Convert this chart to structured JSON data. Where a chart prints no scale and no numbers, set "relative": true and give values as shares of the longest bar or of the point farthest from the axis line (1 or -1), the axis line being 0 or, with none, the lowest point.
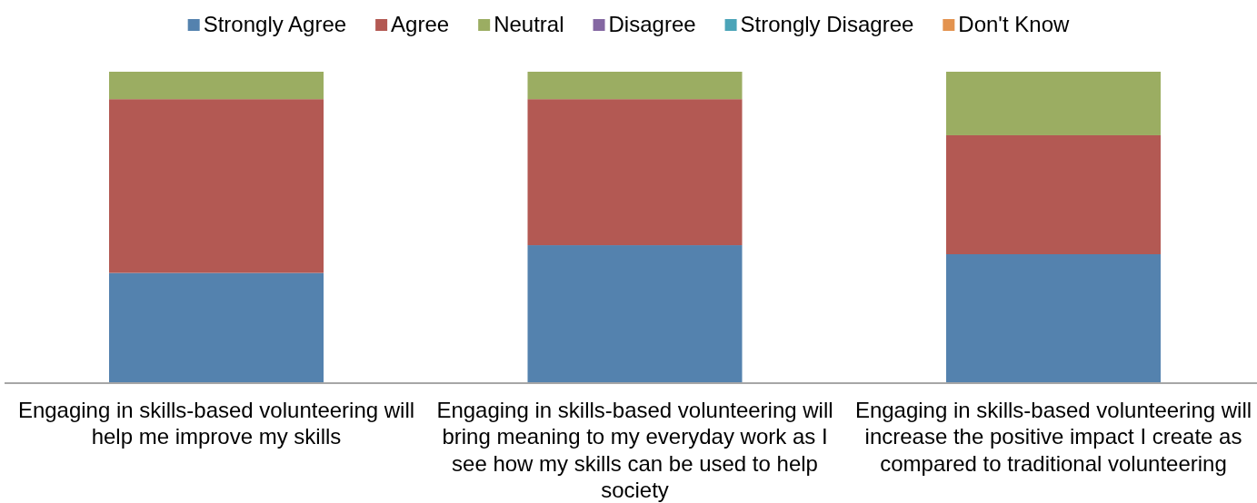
{
  "chart_data": {
    "type": "bar",
    "stacked": true,
    "relative": true,
    "legend": "top",
    "categories": [
      "Engaging in skills-based volunteering will help me improve my skills",
      "Engaging in skills-based volunteering will bring meaning to my everyday work as I see how my skills can be used to help society",
      "Engaging in skills-based volunteering will increase the positive impact I create as compared to traditional volunteering"
    ],
    "series": [
      {
        "name": "Strongly Agree",
        "color": "#5482ae",
        "values": [
          0.354,
          0.443,
          0.414
        ]
      },
      {
        "name": "Agree",
        "color": "#b35953",
        "values": [
          0.558,
          0.469,
          0.382
        ]
      },
      {
        "name": "Neutral",
        "color": "#9bad62",
        "values": [
          0.088,
          0.088,
          0.204
        ]
      },
      {
        "name": "Disagree",
        "color": "#8467a2",
        "values": [
          0,
          0,
          0
        ]
      },
      {
        "name": "Strongly Disagree",
        "color": "#4ba4b8",
        "values": [
          0,
          0,
          0
        ]
      },
      {
        "name": "Don't Know",
        "color": "#e3934f",
        "values": [
          0,
          0,
          0
        ]
      }
    ]
  }
}
